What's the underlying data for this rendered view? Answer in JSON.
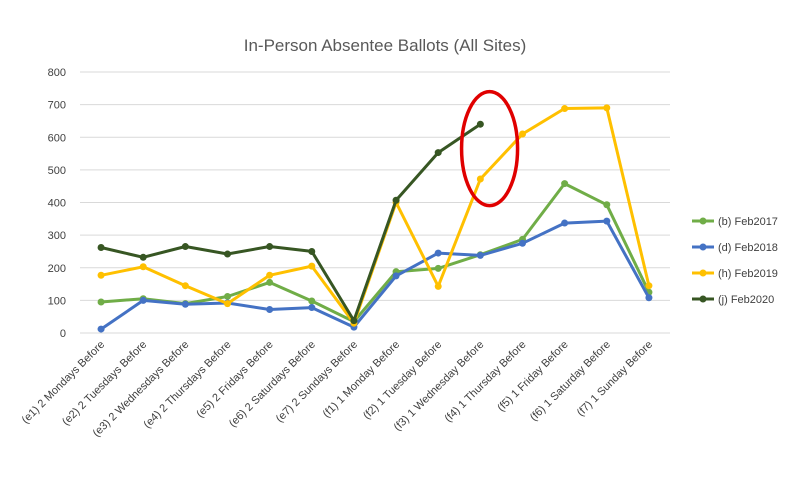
{
  "chart_data": {
    "type": "line",
    "title": "In-Person Absentee Ballots (All Sites)",
    "xlabel": "",
    "ylabel": "",
    "ylim": [
      0,
      800
    ],
    "yticks": [
      0,
      100,
      200,
      300,
      400,
      500,
      600,
      700,
      800
    ],
    "grid": true,
    "legend_position": "right",
    "categories": [
      "(e1) 2 Mondays Before",
      "(e2) 2 Tuesdays Before",
      "(e3) 2 Wednesdays Before",
      "(e4) 2 Thursdays Before",
      "(e5) 2 Fridays Before",
      "(e6) 2 Saturdays Before",
      "(e7) 2 Sundays Before",
      "(f1) 1 Monday Before",
      "(f2) 1 Tuesday Before",
      "(f3) 1 Wednesday Before",
      "(f4) 1 Thursday Before",
      "(f5) 1 Friday Before",
      "(f6) 1 Saturday Before",
      "(f7) 1 Sunday Before"
    ],
    "series": [
      {
        "name": "(b) Feb2017",
        "color": "#70ad47",
        "values": [
          95,
          105,
          90,
          112,
          155,
          98,
          35,
          188,
          198,
          240,
          287,
          458,
          393,
          125
        ]
      },
      {
        "name": "(d) Feb2018",
        "color": "#4472c4",
        "values": [
          12,
          100,
          88,
          92,
          72,
          78,
          18,
          175,
          245,
          238,
          275,
          337,
          343,
          108
        ]
      },
      {
        "name": "(h) Feb2019",
        "color": "#ffc000",
        "values": [
          177,
          203,
          145,
          90,
          177,
          205,
          30,
          400,
          143,
          472,
          610,
          688,
          690,
          145
        ]
      },
      {
        "name": "(j) Feb2020",
        "color": "#375623",
        "values": [
          262,
          232,
          265,
          242,
          265,
          250,
          38,
          407,
          553,
          640,
          null,
          null,
          null,
          null
        ]
      }
    ],
    "annotations": [
      {
        "type": "ellipse",
        "color": "#e00000",
        "around_category": "(f3) 1 Wednesday Before",
        "center_x_index": 9.6,
        "center_y_value": 565
      }
    ]
  }
}
